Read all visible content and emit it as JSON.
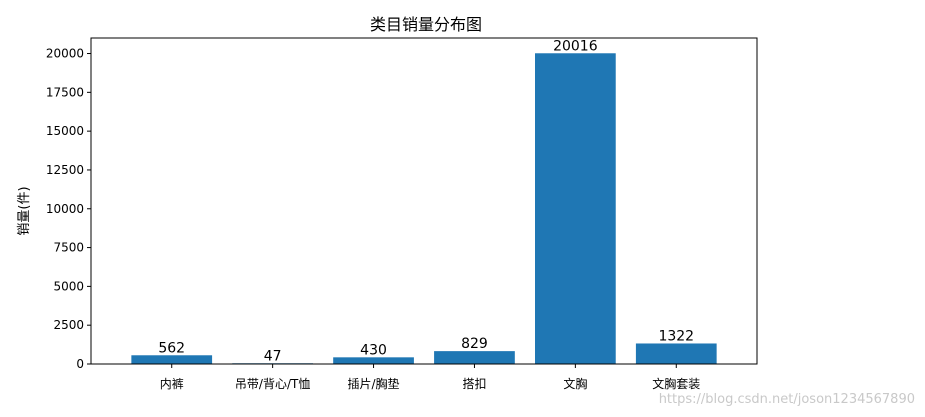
{
  "chart_data": {
    "type": "bar",
    "title": "类目销量分布图",
    "xlabel": "",
    "ylabel": "销量(件)",
    "categories": [
      "内裤",
      "吊带/背心/T恤",
      "插片/胸垫",
      "搭扣",
      "文胸",
      "文胸套装"
    ],
    "values": [
      562,
      47,
      430,
      829,
      20016,
      1322
    ],
    "data_labels": [
      "562",
      "47",
      "430",
      "829",
      "20016",
      "1322"
    ],
    "ylim": [
      0,
      21000
    ],
    "yticks": [
      0,
      2500,
      5000,
      7500,
      10000,
      12500,
      15000,
      17500,
      20000
    ],
    "bar_color": "#1f77b4",
    "grid": false,
    "legend": "none"
  },
  "watermark": "https://blog.csdn.net/joson1234567890"
}
